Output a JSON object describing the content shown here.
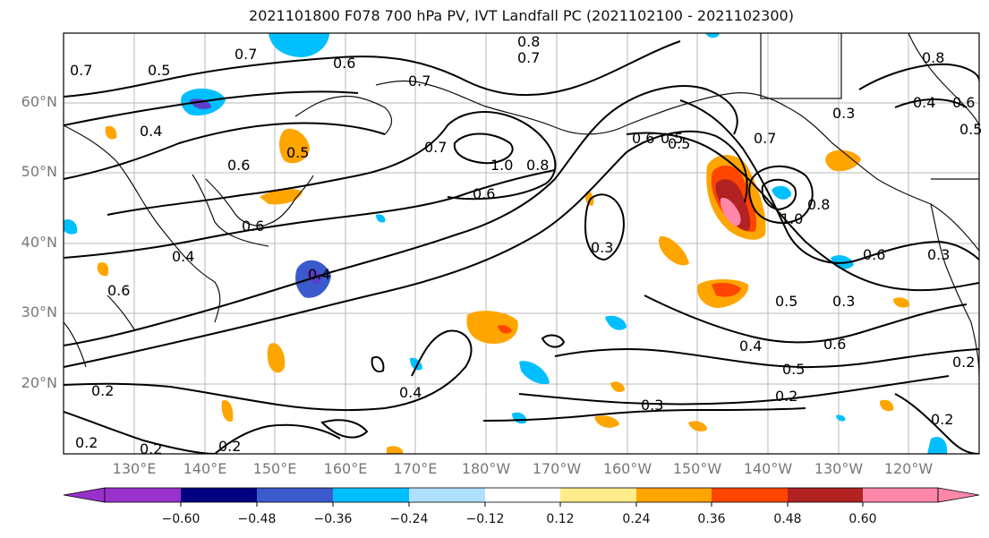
{
  "title": "2021101800 F078 700 hPa PV, IVT Landfall PC (2021102100 - 2021102300)",
  "map": {
    "lat_labels": [
      "60°N",
      "50°N",
      "40°N",
      "30°N",
      "20°N"
    ],
    "lon_labels": [
      "130°E",
      "140°E",
      "150°E",
      "160°E",
      "170°E",
      "180°W",
      "170°W",
      "160°W",
      "150°W",
      "140°W",
      "130°W",
      "120°W"
    ],
    "contour_labels": [
      "0.7",
      "0.5",
      "0.4",
      "0.6",
      "0.7",
      "0.8",
      "0.7",
      "0.8",
      "0.7",
      "0.5",
      "0.4",
      "0.6",
      "0.5",
      "0.6",
      "0.7",
      "0.6",
      "0.5",
      "0.7",
      "1.0",
      "0.8",
      "1.0",
      "0.6",
      "0.3",
      "0.6",
      "0.8",
      "0.4",
      "0.4",
      "0.6",
      "0.5",
      "0.3",
      "0.3",
      "0.4",
      "0.6",
      "0.5",
      "0.2",
      "0.3",
      "0.2",
      "0.4",
      "0.2",
      "0.2",
      "0.2",
      "0.2",
      "0.2",
      "0.3",
      "0.5",
      "0.6"
    ],
    "filled_colors": {
      "deep_negative": "#5b3fc9",
      "negative": "#00bfff",
      "positive": "#ffa500",
      "strong_positive": "#ff3300",
      "very_strong_positive": "#b22222",
      "extreme_positive": "#ff88aa"
    }
  },
  "colorbar": {
    "colors": [
      "#9932cc",
      "#000080",
      "#3b5bcc",
      "#00bfff",
      "#b0e0ff",
      "#ffffff",
      "#ffec8b",
      "#ffa500",
      "#ff4500",
      "#b22222",
      "#ff88aa"
    ],
    "tick_labels": [
      "−0.60",
      "−0.48",
      "−0.36",
      "−0.24",
      "−0.12",
      "0.12",
      "0.24",
      "0.36",
      "0.48",
      "0.60"
    ]
  }
}
